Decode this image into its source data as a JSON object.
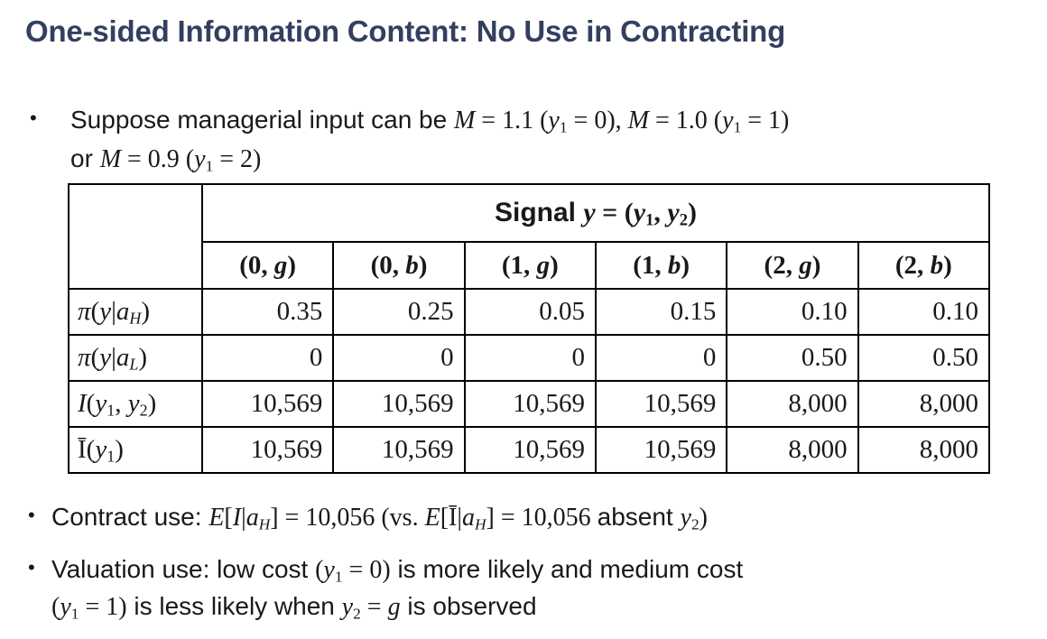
{
  "title": "One-sided Information Content: No Use in Contracting",
  "colors": {
    "title_text": "#333F5F",
    "body_text": "#191919",
    "table_border": "#000000",
    "background": "#ffffff"
  },
  "bullets": {
    "b1": {
      "marker": "•",
      "line1": [
        {
          "t": "Suppose managerial input can be "
        },
        {
          "t": "M",
          "serif": true,
          "it": true
        },
        {
          "t": " = 1.1 (",
          "serif": true
        },
        {
          "t": "y",
          "serif": true,
          "it": true
        },
        {
          "t": "1",
          "serif": true,
          "sub": true
        },
        {
          "t": " = 0), ",
          "serif": true
        },
        {
          "t": "M",
          "serif": true,
          "it": true
        },
        {
          "t": " = 1.0 (",
          "serif": true
        },
        {
          "t": "y",
          "serif": true,
          "it": true
        },
        {
          "t": "1",
          "serif": true,
          "sub": true
        },
        {
          "t": " = 1)",
          "serif": true
        }
      ],
      "line2": [
        {
          "t": "or "
        },
        {
          "t": "M",
          "serif": true,
          "it": true
        },
        {
          "t": " = 0.9 (",
          "serif": true
        },
        {
          "t": "y",
          "serif": true,
          "it": true
        },
        {
          "t": "1",
          "serif": true,
          "sub": true
        },
        {
          "t": " = 2)",
          "serif": true
        }
      ]
    },
    "b2": {
      "marker": "•",
      "line1": [
        {
          "t": "Contract use: "
        },
        {
          "t": "E",
          "serif": true,
          "it": true
        },
        {
          "t": "[",
          "serif": true
        },
        {
          "t": "I",
          "serif": true,
          "it": true
        },
        {
          "t": "|",
          "serif": true
        },
        {
          "t": "a",
          "serif": true,
          "it": true
        },
        {
          "t": "H",
          "serif": true,
          "it": true,
          "sub": true
        },
        {
          "t": "] = 10,056 ",
          "serif": true
        },
        {
          "t": "(vs. ",
          "serif": true
        },
        {
          "t": "E",
          "serif": true,
          "it": true
        },
        {
          "t": "[",
          "serif": true
        },
        {
          "t": "Ī",
          "serif": true
        },
        {
          "t": "|",
          "serif": true
        },
        {
          "t": "a",
          "serif": true,
          "it": true
        },
        {
          "t": "H",
          "serif": true,
          "it": true,
          "sub": true
        },
        {
          "t": "]  = 10,056 ",
          "serif": true
        },
        {
          "t": "absent "
        },
        {
          "t": "y",
          "serif": true,
          "it": true
        },
        {
          "t": "2",
          "serif": true,
          "sub": true
        },
        {
          "t": ")",
          "serif": true
        }
      ]
    },
    "b3": {
      "marker": "•",
      "line1": [
        {
          "t": "Valuation use: low cost "
        },
        {
          "t": "(",
          "serif": true
        },
        {
          "t": "y",
          "serif": true,
          "it": true
        },
        {
          "t": "1",
          "serif": true,
          "sub": true
        },
        {
          "t": " = 0)",
          "serif": true
        },
        {
          "t": " is more likely and medium cost"
        }
      ],
      "line2": [
        {
          "t": "(",
          "serif": true
        },
        {
          "t": "y",
          "serif": true,
          "it": true
        },
        {
          "t": "1",
          "serif": true,
          "sub": true
        },
        {
          "t": " = 1)",
          "serif": true
        },
        {
          "t": "  is less likely when "
        },
        {
          "t": "y",
          "serif": true,
          "it": true
        },
        {
          "t": "2",
          "serif": true,
          "sub": true
        },
        {
          "t": " = ",
          "serif": true
        },
        {
          "t": "g",
          "serif": true,
          "it": true
        },
        {
          "t": " is observed"
        }
      ]
    }
  },
  "table": {
    "signal_header": [
      {
        "t": "Signal ",
        "b": true
      },
      {
        "t": "y",
        "serif": true,
        "it": true,
        "b": true
      },
      {
        "t": " = (",
        "serif": true,
        "b": true
      },
      {
        "t": "y",
        "serif": true,
        "it": true,
        "b": true
      },
      {
        "t": "1",
        "serif": true,
        "sub": true,
        "b": true
      },
      {
        "t": ", ",
        "serif": true,
        "b": true
      },
      {
        "t": "y",
        "serif": true,
        "it": true,
        "b": true
      },
      {
        "t": "2",
        "serif": true,
        "sub": true,
        "b": true
      },
      {
        "t": ")",
        "serif": true,
        "b": true
      }
    ],
    "col_headers": [
      [
        {
          "t": "(0, ",
          "serif": true,
          "b": true
        },
        {
          "t": "g",
          "serif": true,
          "it": true,
          "b": true
        },
        {
          "t": ")",
          "serif": true,
          "b": true
        }
      ],
      [
        {
          "t": "(0, ",
          "serif": true,
          "b": true
        },
        {
          "t": "b",
          "serif": true,
          "it": true,
          "b": true
        },
        {
          "t": ")",
          "serif": true,
          "b": true
        }
      ],
      [
        {
          "t": "(1, ",
          "serif": true,
          "b": true
        },
        {
          "t": "g",
          "serif": true,
          "it": true,
          "b": true
        },
        {
          "t": ")",
          "serif": true,
          "b": true
        }
      ],
      [
        {
          "t": "(1, ",
          "serif": true,
          "b": true
        },
        {
          "t": "b",
          "serif": true,
          "it": true,
          "b": true
        },
        {
          "t": ")",
          "serif": true,
          "b": true
        }
      ],
      [
        {
          "t": "(2, ",
          "serif": true,
          "b": true
        },
        {
          "t": "g",
          "serif": true,
          "it": true,
          "b": true
        },
        {
          "t": ")",
          "serif": true,
          "b": true
        }
      ],
      [
        {
          "t": "(2, ",
          "serif": true,
          "b": true
        },
        {
          "t": "b",
          "serif": true,
          "it": true,
          "b": true
        },
        {
          "t": ")",
          "serif": true,
          "b": true
        }
      ]
    ],
    "rows": [
      {
        "label": [
          {
            "t": "π",
            "serif": true,
            "it": true
          },
          {
            "t": "(",
            "serif": true
          },
          {
            "t": "y",
            "serif": true,
            "it": true
          },
          {
            "t": "|",
            "serif": true
          },
          {
            "t": "a",
            "serif": true,
            "it": true
          },
          {
            "t": "H",
            "serif": true,
            "it": true,
            "sub": true
          },
          {
            "t": ")",
            "serif": true
          }
        ],
        "values": [
          "0.35",
          "0.25",
          "0.05",
          "0.15",
          "0.10",
          "0.10"
        ]
      },
      {
        "label": [
          {
            "t": "π",
            "serif": true,
            "it": true
          },
          {
            "t": "(",
            "serif": true
          },
          {
            "t": "y",
            "serif": true,
            "it": true
          },
          {
            "t": "|",
            "serif": true
          },
          {
            "t": "a",
            "serif": true,
            "it": true
          },
          {
            "t": "L",
            "serif": true,
            "it": true,
            "sub": true
          },
          {
            "t": ")",
            "serif": true
          }
        ],
        "values": [
          "0",
          "0",
          "0",
          "0",
          "0.50",
          "0.50"
        ]
      },
      {
        "label": [
          {
            "t": "I",
            "serif": true,
            "it": true
          },
          {
            "t": "(",
            "serif": true
          },
          {
            "t": "y",
            "serif": true,
            "it": true
          },
          {
            "t": "1",
            "serif": true,
            "sub": true
          },
          {
            "t": ", ",
            "serif": true
          },
          {
            "t": "y",
            "serif": true,
            "it": true
          },
          {
            "t": "2",
            "serif": true,
            "sub": true
          },
          {
            "t": ")",
            "serif": true
          }
        ],
        "values": [
          "10,569",
          "10,569",
          "10,569",
          "10,569",
          "8,000",
          "8,000"
        ]
      },
      {
        "label": [
          {
            "t": "Ī",
            "serif": true
          },
          {
            "t": "(",
            "serif": true
          },
          {
            "t": "y",
            "serif": true,
            "it": true
          },
          {
            "t": "1",
            "serif": true,
            "sub": true
          },
          {
            "t": ")",
            "serif": true
          }
        ],
        "values": [
          "10,569",
          "10,569",
          "10,569",
          "10,569",
          "8,000",
          "8,000"
        ]
      }
    ]
  }
}
